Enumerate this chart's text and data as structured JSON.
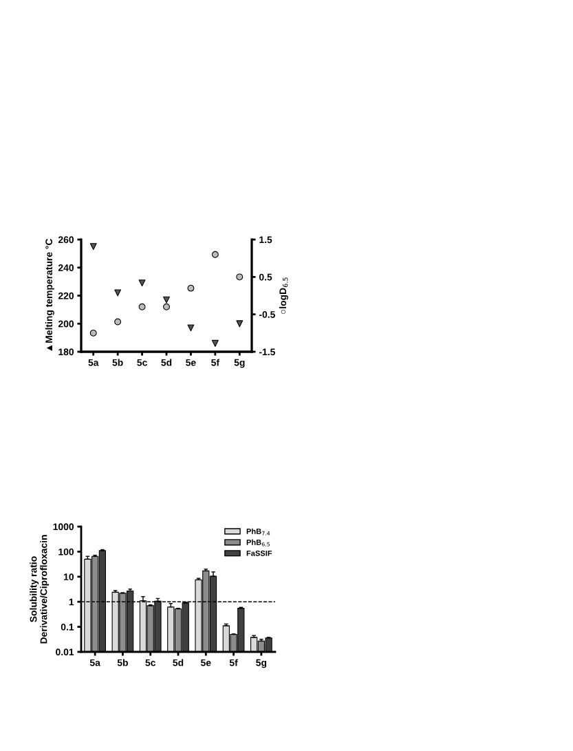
{
  "chart_data": [
    {
      "type": "scatter",
      "categories": [
        "5a",
        "5b",
        "5c",
        "5d",
        "5e",
        "5f",
        "5g"
      ],
      "ylabel": "▲Melting temperature °C",
      "y2label": "○logD$_{6.5}$",
      "ylim": [
        180,
        260
      ],
      "yticks": [
        180,
        200,
        220,
        240,
        260
      ],
      "y2lim": [
        -1.5,
        1.5
      ],
      "y2ticks": [
        -1.5,
        -0.5,
        0.5,
        1.5
      ],
      "grid": false,
      "legend": false,
      "series": [
        {
          "color": "#555555",
          "marker": "triangle",
          "values": [
            255,
            222,
            229,
            217,
            197,
            186,
            200
          ]
        },
        {
          "color": "#bbbbbb",
          "marker": "circle",
          "axis": "y2",
          "values": [
            -1.0,
            -0.7,
            -0.3,
            -0.3,
            0.2,
            1.1,
            0.5
          ]
        }
      ]
    },
    {
      "type": "bar",
      "categories": [
        "5a",
        "5b",
        "5c",
        "5d",
        "5e",
        "5f",
        "5g"
      ],
      "ylabel": "Solubility ratio\nDerivative/Ciprofloxacin",
      "log": "y",
      "ylim": [
        0.01,
        1000
      ],
      "yticks": [
        0.01,
        0.1,
        1,
        10,
        100,
        1000
      ],
      "grid": false,
      "legend": "top right",
      "ref_lines": [
        {
          "axis": "y",
          "value": 1,
          "line_style": "dashed",
          "color": "#000000"
        }
      ],
      "series": [
        {
          "name": "PhB$_{7.4}$",
          "color": "#d9d9d9",
          "values": [
            50,
            2.4,
            1.1,
            0.62,
            7.5,
            0.11,
            0.038
          ],
          "errors": [
            [
              50,
              65
            ],
            [
              2.4,
              2.8
            ],
            [
              1.1,
              1.6
            ],
            [
              0.62,
              0.85
            ],
            [
              7.5,
              8.6
            ],
            [
              0.11,
              0.13
            ],
            [
              0.038,
              0.045
            ]
          ]
        },
        {
          "name": "PhB$_{6.5}$",
          "color": "#8c8c8c",
          "values": [
            65,
            2.2,
            0.7,
            0.52,
            17,
            0.05,
            0.027
          ],
          "errors": [
            [
              65,
              72
            ],
            [
              2.2,
              2.3
            ],
            [
              0.7,
              0.75
            ],
            [
              0.52,
              0.55
            ],
            [
              17,
              20
            ],
            [
              0.05,
              0.052
            ],
            [
              0.027,
              0.032
            ]
          ]
        },
        {
          "name": "FaSSIF",
          "color": "#404040",
          "values": [
            110,
            2.7,
            1.05,
            0.9,
            10.5,
            0.55,
            0.036
          ],
          "errors": [
            [
              110,
              120
            ],
            [
              2.7,
              3.2
            ],
            [
              1.05,
              1.35
            ],
            [
              0.9,
              0.95
            ],
            [
              10.5,
              15.5
            ],
            [
              0.55,
              0.6
            ],
            [
              0.036,
              0.038
            ]
          ]
        }
      ]
    }
  ]
}
